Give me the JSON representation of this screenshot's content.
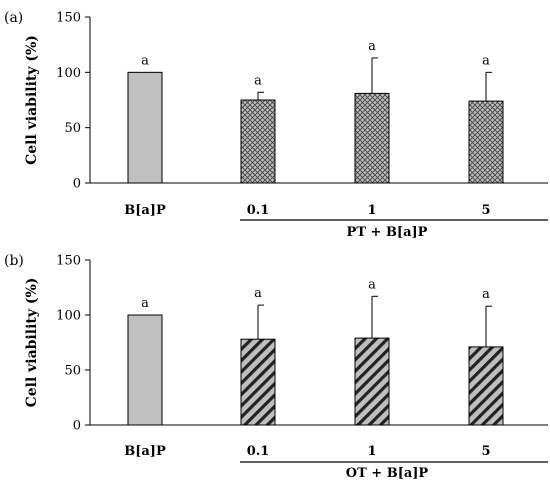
{
  "chart_data": [
    {
      "type": "bar",
      "panel_label": "(a)",
      "ylabel": "Cell viability (%)",
      "ylim": [
        0,
        150
      ],
      "yticks": [
        0,
        50,
        100,
        150
      ],
      "categories": [
        "B[a]P",
        "0.1",
        "1",
        "5"
      ],
      "group_label": "PT + B[a]P",
      "group_members": [
        "0.1",
        "1",
        "5"
      ],
      "values": [
        100,
        75,
        81,
        74
      ],
      "errors": [
        0,
        7,
        32,
        26
      ],
      "significance": [
        "a",
        "a",
        "a",
        "a"
      ],
      "fills": [
        "solid-gray",
        "crosshatch",
        "crosshatch",
        "crosshatch"
      ],
      "grid": false,
      "legend": "none"
    },
    {
      "type": "bar",
      "panel_label": "(b)",
      "ylabel": "Cell viability (%)",
      "ylim": [
        0,
        150
      ],
      "yticks": [
        0,
        50,
        100,
        150
      ],
      "categories": [
        "B[a]P",
        "0.1",
        "1",
        "5"
      ],
      "group_label": "OT + B[a]P",
      "group_members": [
        "0.1",
        "1",
        "5"
      ],
      "values": [
        100,
        78,
        79,
        71
      ],
      "errors": [
        0,
        31,
        38,
        37
      ],
      "significance": [
        "a",
        "a",
        "a",
        "a"
      ],
      "fills": [
        "solid-gray",
        "diagonal-stripes",
        "diagonal-stripes",
        "diagonal-stripes"
      ],
      "grid": false,
      "legend": "none"
    }
  ],
  "colors": {
    "bar_gray": "#c0c0c0",
    "pattern_bg": "#bfbfbf",
    "axis": "#000000"
  }
}
